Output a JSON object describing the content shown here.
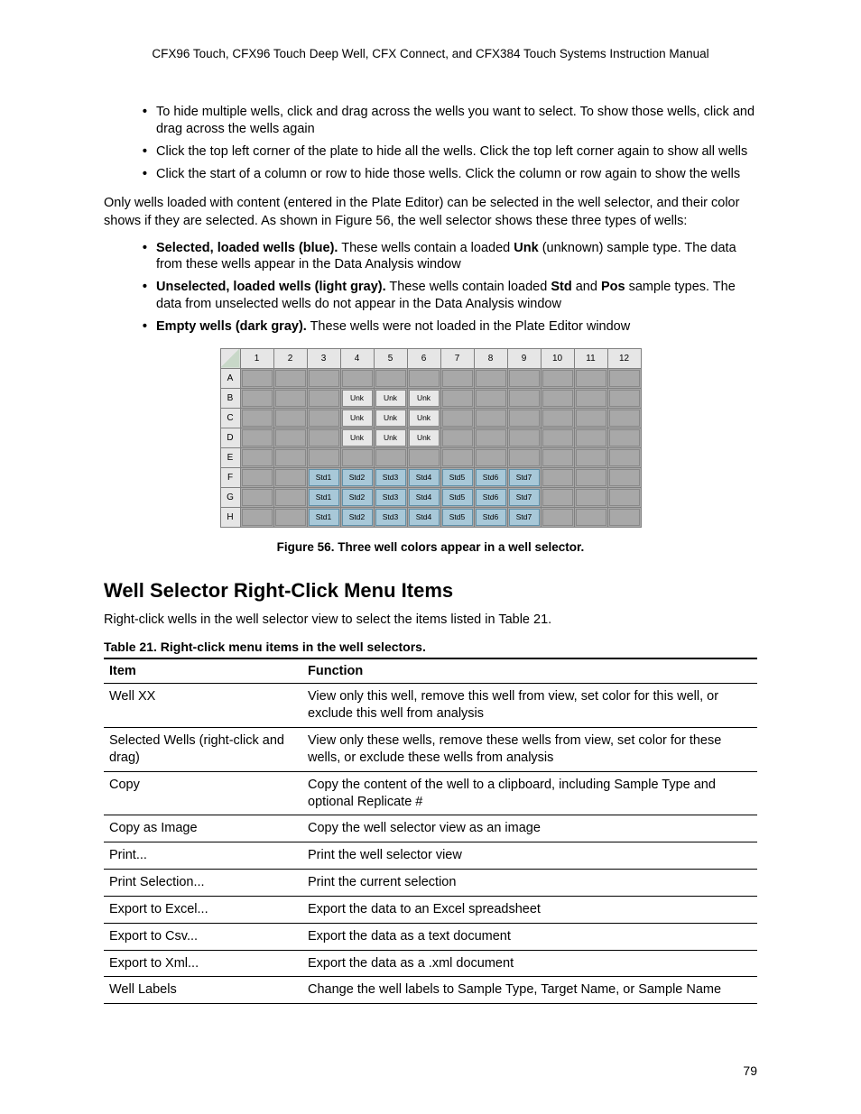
{
  "running_head": "CFX96 Touch, CFX96 Touch Deep Well, CFX Connect, and CFX384 Touch Systems Instruction Manual",
  "top_bullets": [
    "To hide multiple wells, click and drag across the wells you want to select. To show those wells, click and drag across the wells again",
    "Click the top left corner of the plate to hide all the wells. Click the top left corner again to show all wells",
    "Click the start of a column or row to hide those wells. Click the column or row again to show the wells"
  ],
  "para1": "Only wells loaded with content (entered in the Plate Editor) can be selected in the well selector, and their color shows if they are selected. As shown in Figure 56, the well selector shows these three types of wells:",
  "type_bullets": [
    {
      "bold": "Selected, loaded wells (blue).",
      "rest_before": " These wells contain a loaded ",
      "bold2": "Unk",
      "rest_after": " (unknown) sample type. The data from these wells appear in the Data Analysis window"
    },
    {
      "bold": "Unselected, loaded wells (light gray).",
      "rest_before": " These wells contain loaded ",
      "bold2": "Std",
      "mid": " and ",
      "bold3": "Pos",
      "rest_after": " sample types. The data from unselected wells do not appear in the Data Analysis window"
    },
    {
      "bold": "Empty wells (dark gray).",
      "rest_before": " These wells were not loaded in the Plate Editor window",
      "bold2": "",
      "rest_after": ""
    }
  ],
  "well_grid": {
    "cols": [
      "1",
      "2",
      "3",
      "4",
      "5",
      "6",
      "7",
      "8",
      "9",
      "10",
      "11",
      "12"
    ],
    "rows": [
      "A",
      "B",
      "C",
      "D",
      "E",
      "F",
      "G",
      "H"
    ],
    "cells": {
      "A": [
        "",
        "",
        "",
        "",
        "",
        "",
        "",
        "",
        "",
        "",
        "",
        ""
      ],
      "B": [
        "",
        "",
        "",
        "Unk",
        "Unk",
        "Unk",
        "",
        "",
        "",
        "",
        "",
        ""
      ],
      "C": [
        "",
        "",
        "",
        "Unk",
        "Unk",
        "Unk",
        "",
        "",
        "",
        "",
        "",
        ""
      ],
      "D": [
        "",
        "",
        "",
        "Unk",
        "Unk",
        "Unk",
        "",
        "",
        "",
        "",
        "",
        ""
      ],
      "E": [
        "",
        "",
        "",
        "",
        "",
        "",
        "",
        "",
        "",
        "",
        "",
        ""
      ],
      "F": [
        "",
        "",
        "Std1",
        "Std2",
        "Std3",
        "Std4",
        "Std5",
        "Std6",
        "Std7",
        "",
        "",
        ""
      ],
      "G": [
        "",
        "",
        "Std1",
        "Std2",
        "Std3",
        "Std4",
        "Std5",
        "Std6",
        "Std7",
        "",
        "",
        ""
      ],
      "H": [
        "",
        "",
        "Std1",
        "Std2",
        "Std3",
        "Std4",
        "Std5",
        "Std6",
        "Std7",
        "",
        "",
        ""
      ]
    },
    "colors": {
      "empty_bg": "#a8a8a8",
      "loaded_bg": "#e8e8e8",
      "std_bg": "#a8c8d8",
      "header_bg": "#e6e6e6",
      "border": "#808080"
    }
  },
  "figure_caption": "Figure 56. Three well colors appear in a well selector.",
  "section_heading": "Well Selector Right-Click Menu Items",
  "para2": "Right-click wells in the well selector view to select the items listed in Table 21.",
  "table_caption": "Table 21. Right-click menu items in the well selectors.",
  "menu_table": {
    "headers": [
      "Item",
      "Function"
    ],
    "rows": [
      [
        "Well XX",
        "View only this well, remove this well from view, set color for this well, or exclude this well from analysis"
      ],
      [
        "Selected Wells (right-click and drag)",
        "View only these wells, remove these wells from view, set color for these wells, or exclude these wells from analysis"
      ],
      [
        "Copy",
        "Copy the content of the well to a clipboard, including Sample Type and optional Replicate #"
      ],
      [
        "Copy as Image",
        "Copy the well selector view as an image"
      ],
      [
        "Print...",
        "Print the well selector view"
      ],
      [
        "Print Selection...",
        "Print the current selection"
      ],
      [
        "Export to Excel...",
        "Export the data to an Excel spreadsheet"
      ],
      [
        "Export to Csv...",
        "Export the data as a text document"
      ],
      [
        "Export to Xml...",
        "Export the data as a .xml document"
      ],
      [
        "Well Labels",
        "Change the well labels to Sample Type, Target Name, or Sample Name"
      ]
    ]
  },
  "page_number": "79"
}
